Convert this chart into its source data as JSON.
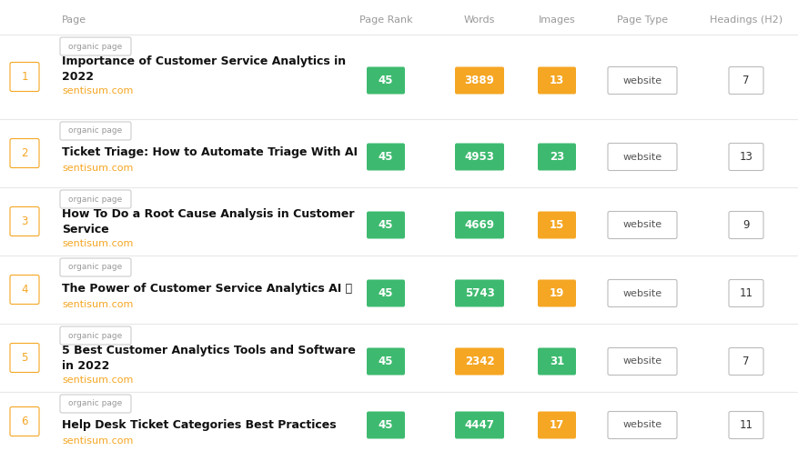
{
  "headers": [
    "Page",
    "Page Rank",
    "Words",
    "Images",
    "Page Type",
    "Headings (H2)"
  ],
  "rows": [
    {
      "rank": 1,
      "tag": "organic page",
      "title_line1": "Importance of Customer Service Analytics in",
      "title_line2": "2022",
      "domain": "sentisum.com",
      "page_rank": 45,
      "page_rank_color": "#3dba6f",
      "words": 3889,
      "words_color": "#f5a623",
      "images": 13,
      "images_color": "#f5a623",
      "page_type": "website",
      "headings": 7
    },
    {
      "rank": 2,
      "tag": "organic page",
      "title_line1": "Ticket Triage: How to Automate Triage With AI",
      "title_line2": "",
      "domain": "sentisum.com",
      "page_rank": 45,
      "page_rank_color": "#3dba6f",
      "words": 4953,
      "words_color": "#3dba6f",
      "images": 23,
      "images_color": "#3dba6f",
      "page_type": "website",
      "headings": 13
    },
    {
      "rank": 3,
      "tag": "organic page",
      "title_line1": "How To Do a Root Cause Analysis in Customer",
      "title_line2": "Service",
      "domain": "sentisum.com",
      "page_rank": 45,
      "page_rank_color": "#3dba6f",
      "words": 4669,
      "words_color": "#3dba6f",
      "images": 15,
      "images_color": "#f5a623",
      "page_type": "website",
      "headings": 9
    },
    {
      "rank": 4,
      "tag": "organic page",
      "title_line1": "The Power of Customer Service Analytics AI 🍲",
      "title_line2": "",
      "domain": "sentisum.com",
      "page_rank": 45,
      "page_rank_color": "#3dba6f",
      "words": 5743,
      "words_color": "#3dba6f",
      "images": 19,
      "images_color": "#f5a623",
      "page_type": "website",
      "headings": 11
    },
    {
      "rank": 5,
      "tag": "organic page",
      "title_line1": "5 Best Customer Analytics Tools and Software",
      "title_line2": "in 2022",
      "domain": "sentisum.com",
      "page_rank": 45,
      "page_rank_color": "#3dba6f",
      "words": 2342,
      "words_color": "#f5a623",
      "images": 31,
      "images_color": "#3dba6f",
      "page_type": "website",
      "headings": 7
    },
    {
      "rank": 6,
      "tag": "organic page",
      "title_line1": "Help Desk Ticket Categories Best Practices",
      "title_line2": "",
      "domain": "sentisum.com",
      "page_rank": 45,
      "page_rank_color": "#3dba6f",
      "words": 4447,
      "words_color": "#3dba6f",
      "images": 17,
      "images_color": "#f5a623",
      "page_type": "website",
      "headings": 11
    }
  ],
  "bg_color": "#ffffff",
  "header_color": "#999999",
  "title_color": "#111111",
  "domain_color": "#f5a623",
  "rank_border_color": "#f5a623",
  "rank_text_color": "#f5a623",
  "tag_border_color": "#cccccc",
  "tag_text_color": "#999999",
  "website_border_color": "#bbbbbb",
  "website_text_color": "#555555",
  "headings_border_color": "#bbbbbb",
  "headings_text_color": "#333333",
  "divider_color": "#e8e8e8",
  "fig_w": 8.78,
  "fig_h": 4.96,
  "dpi": 100
}
